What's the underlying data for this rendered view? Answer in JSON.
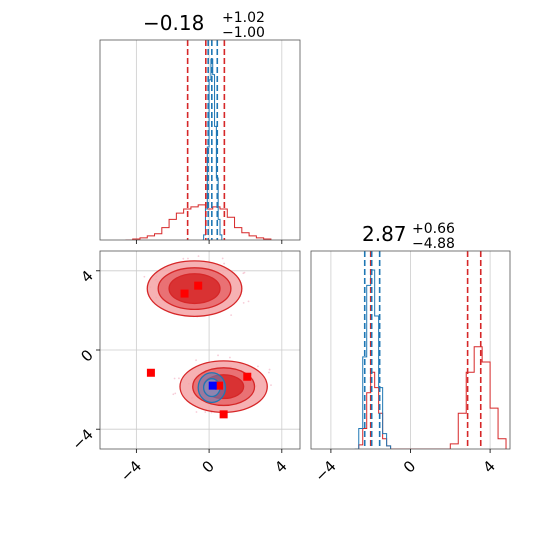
{
  "chart_data": {
    "type": "corner",
    "parameters": [
      {
        "title_value": "−0.18",
        "title_plus": "+1.02",
        "title_minus": "−1.00",
        "range": [
          -6,
          5
        ]
      },
      {
        "title_value": "2.87",
        "title_plus": "+0.66",
        "title_minus": "−4.88",
        "range": [
          -5,
          5
        ]
      }
    ],
    "ticks": [
      -4,
      0,
      4
    ],
    "tick_labels": [
      "−4",
      "0",
      "4"
    ],
    "colors": {
      "red": "#d62728",
      "blue": "#1f77b4",
      "grid": "#cccccc",
      "marker_blue": "#0000ff",
      "marker_red": "#ff0000"
    },
    "diag_hist": [
      {
        "red_hist": {
          "x": [
            -4.6,
            -4.2,
            -3.8,
            -3.4,
            -3.0,
            -2.6,
            -2.2,
            -1.8,
            -1.4,
            -1.0,
            -0.6,
            -0.2,
            0.2,
            0.6,
            1.0,
            1.4,
            1.8,
            2.2,
            2.6,
            3.0,
            3.4
          ],
          "y": [
            0,
            0.01,
            0.02,
            0.04,
            0.06,
            0.12,
            0.2,
            0.26,
            0.3,
            0.32,
            0.34,
            0.3,
            0.32,
            0.3,
            0.22,
            0.12,
            0.07,
            0.04,
            0.02,
            0.01,
            0
          ]
        },
        "blue_hist": {
          "x": [
            -0.4,
            -0.3,
            -0.2,
            -0.1,
            0.0,
            0.1,
            0.2,
            0.3,
            0.4,
            0.5,
            0.6,
            0.7
          ],
          "y": [
            0,
            0.05,
            0.3,
            0.9,
            1.55,
            1.75,
            1.6,
            1.1,
            0.6,
            0.2,
            0.05,
            0
          ]
        },
        "red_quantiles": [
          -1.18,
          -0.18,
          0.84
        ],
        "blue_quantiles": [
          -0.05,
          0.15,
          0.45
        ]
      },
      {
        "red_hist": {
          "x": [
            -2.8,
            -2.6,
            -2.4,
            -2.2,
            -2.0,
            -1.8,
            -1.6,
            -1.4,
            -1.2,
            -1.0,
            0,
            2.0,
            2.4,
            2.8,
            3.2,
            3.6,
            4.0,
            4.4,
            4.8
          ],
          "y": [
            0,
            0.04,
            0.2,
            0.55,
            0.75,
            0.6,
            0.35,
            0.1,
            0.03,
            0,
            0,
            0.05,
            0.35,
            0.75,
            1.0,
            0.85,
            0.4,
            0.1,
            0
          ]
        },
        "blue_hist": {
          "x": [
            -2.8,
            -2.6,
            -2.4,
            -2.2,
            -2.0,
            -1.8,
            -1.6,
            -1.4,
            -1.2,
            -1.0
          ],
          "y": [
            0,
            0.2,
            0.9,
            1.6,
            1.75,
            1.3,
            0.6,
            0.15,
            0.03,
            0
          ]
        },
        "red_quantiles": [
          -2.0,
          2.87,
          3.53
        ],
        "blue_quantiles": [
          -2.3,
          -1.95,
          -1.55
        ]
      }
    ],
    "contours_2d": {
      "red_modes": [
        {
          "cx": -0.8,
          "cy": 3.1,
          "rx": [
            2.6,
            2.0,
            1.4
          ],
          "ry": [
            1.4,
            1.05,
            0.75
          ]
        },
        {
          "cx": 0.8,
          "cy": -1.85,
          "rx": [
            2.4,
            1.7,
            1.1
          ],
          "ry": [
            1.3,
            0.95,
            0.6
          ]
        }
      ],
      "blue_mode": {
        "cx": 0.15,
        "cy": -1.9,
        "rx": [
          0.75,
          0.45
        ],
        "ry": [
          0.75,
          0.45
        ]
      },
      "red_markers": [
        [
          -1.35,
          2.85
        ],
        [
          -0.6,
          3.25
        ],
        [
          -3.2,
          -1.15
        ],
        [
          0.55,
          -1.8
        ],
        [
          0.8,
          -3.25
        ],
        [
          2.1,
          -1.35
        ]
      ],
      "blue_markers": [
        [
          0.2,
          -1.8
        ]
      ]
    }
  }
}
